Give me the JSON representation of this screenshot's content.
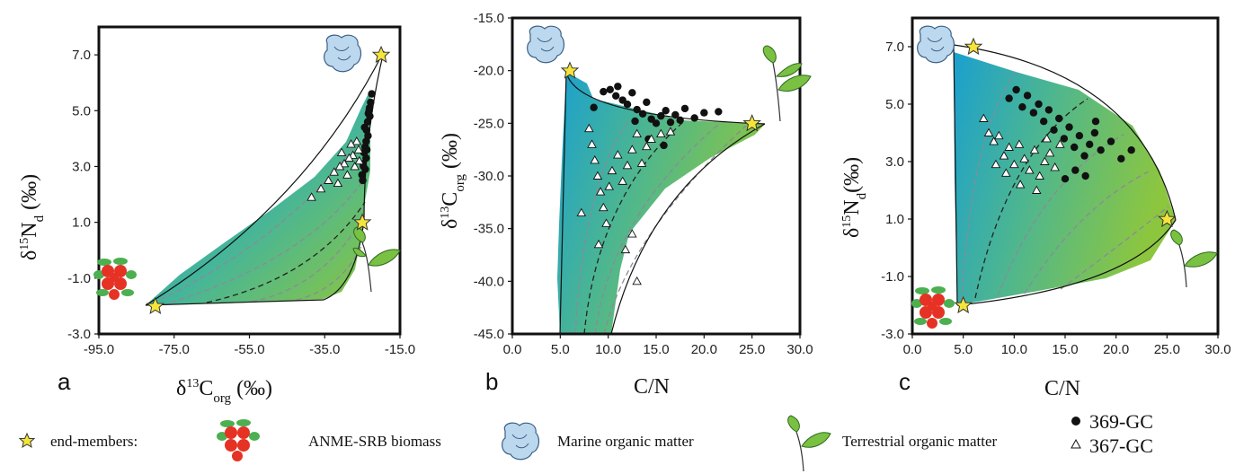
{
  "chart_data": [
    {
      "panel": "a",
      "type": "scatter",
      "xlabel": "δ13Corg (‰)",
      "ylabel": "δ15Nd (‰)",
      "xlim": [
        -95,
        -15
      ],
      "ylim": [
        -3,
        8
      ],
      "xticks": [
        "-95.0",
        "-75.0",
        "-55.0",
        "-35.0",
        "-15.0"
      ],
      "yticks": [
        "-3.0",
        "-1.0",
        "1.0",
        "3.0",
        "5.0",
        "7.0"
      ],
      "end_members": [
        {
          "name": "ANME-SRB biomass",
          "x": -80,
          "y": -2.0
        },
        {
          "name": "Marine organic matter",
          "x": -20,
          "y": 7.0
        },
        {
          "name": "Terrestrial organic matter",
          "x": -25,
          "y": 1.0
        }
      ],
      "series": [
        {
          "name": "369-GC",
          "points": [
            [
              -22.5,
              5.6
            ],
            [
              -22.8,
              5.3
            ],
            [
              -23.2,
              5.0
            ],
            [
              -23.0,
              4.8
            ],
            [
              -23.6,
              4.6
            ],
            [
              -23.9,
              4.3
            ],
            [
              -23.5,
              4.1
            ],
            [
              -24.0,
              3.9
            ],
            [
              -24.3,
              3.7
            ],
            [
              -24.6,
              3.5
            ],
            [
              -24.0,
              3.3
            ],
            [
              -24.8,
              3.1
            ],
            [
              -24.2,
              2.9
            ],
            [
              -25.1,
              2.7
            ],
            [
              -24.9,
              2.5
            ],
            [
              -23.4,
              4.9
            ],
            [
              -24.4,
              4.4
            ],
            [
              -23.1,
              5.1
            ],
            [
              -24.7,
              3.0
            ],
            [
              -23.8,
              3.6
            ]
          ]
        },
        {
          "name": "367-GC",
          "points": [
            [
              -26.0,
              3.6
            ],
            [
              -27.5,
              3.4
            ],
            [
              -28.5,
              3.3
            ],
            [
              -29.8,
              3.1
            ],
            [
              -31.0,
              3.0
            ],
            [
              -32.5,
              2.8
            ],
            [
              -34.0,
              2.5
            ],
            [
              -36.0,
              2.2
            ],
            [
              -38.5,
              1.9
            ],
            [
              -27.0,
              3.0
            ],
            [
              -29.0,
              2.7
            ],
            [
              -30.5,
              3.5
            ],
            [
              -26.5,
              3.9
            ],
            [
              -28.0,
              3.8
            ],
            [
              -31.5,
              2.4
            ],
            [
              -25.8,
              3.2
            ]
          ]
        }
      ]
    },
    {
      "panel": "b",
      "type": "scatter",
      "xlabel": "C/N",
      "ylabel": "δ13Corg (‰)",
      "xlim": [
        0,
        30
      ],
      "ylim": [
        -45,
        -15
      ],
      "xticks": [
        "0.0",
        "5.0",
        "10.0",
        "15.0",
        "20.0",
        "25.0",
        "30.0"
      ],
      "yticks": [
        "-45.0",
        "-40.0",
        "-35.0",
        "-30.0",
        "-25.0",
        "-20.0",
        "-15.0"
      ],
      "end_members": [
        {
          "name": "Marine organic matter",
          "x": 6,
          "y": -20
        },
        {
          "name": "Terrestrial organic matter",
          "x": 25,
          "y": -25
        }
      ],
      "series": [
        {
          "name": "369-GC",
          "points": [
            [
              8.5,
              -23.5
            ],
            [
              9.5,
              -22.0
            ],
            [
              10.2,
              -21.8
            ],
            [
              10.8,
              -22.4
            ],
            [
              11.5,
              -22.8
            ],
            [
              12.0,
              -23.2
            ],
            [
              12.5,
              -22.1
            ],
            [
              13.0,
              -23.7
            ],
            [
              13.6,
              -24.1
            ],
            [
              14.0,
              -23.0
            ],
            [
              14.5,
              -24.6
            ],
            [
              15.0,
              -25.0
            ],
            [
              15.5,
              -24.3
            ],
            [
              16.0,
              -23.8
            ],
            [
              16.5,
              -24.9
            ],
            [
              17.0,
              -24.2
            ],
            [
              17.5,
              -24.7
            ],
            [
              18.0,
              -23.6
            ],
            [
              19.0,
              -24.5
            ],
            [
              20.0,
              -24.0
            ],
            [
              21.5,
              -23.9
            ],
            [
              14.2,
              -26.5
            ],
            [
              15.8,
              -27.1
            ],
            [
              11.0,
              -21.5
            ],
            [
              12.8,
              -24.8
            ]
          ]
        },
        {
          "name": "367-GC",
          "points": [
            [
              8.0,
              -25.5
            ],
            [
              8.3,
              -27.0
            ],
            [
              8.6,
              -28.5
            ],
            [
              8.9,
              -30.0
            ],
            [
              9.2,
              -31.5
            ],
            [
              9.5,
              -33.0
            ],
            [
              9.8,
              -34.5
            ],
            [
              10.1,
              -31.0
            ],
            [
              10.4,
              -29.5
            ],
            [
              11.0,
              -28.0
            ],
            [
              11.5,
              -30.5
            ],
            [
              12.0,
              -29.0
            ],
            [
              12.5,
              -27.5
            ],
            [
              13.0,
              -26.0
            ],
            [
              13.5,
              -28.8
            ],
            [
              14.0,
              -27.2
            ],
            [
              14.5,
              -26.5
            ],
            [
              15.5,
              -26.0
            ],
            [
              16.5,
              -25.8
            ],
            [
              9.0,
              -36.5
            ],
            [
              11.8,
              -37.0
            ],
            [
              12.5,
              -35.5
            ],
            [
              13.0,
              -40.0
            ],
            [
              7.2,
              -33.5
            ]
          ]
        }
      ]
    },
    {
      "panel": "c",
      "type": "scatter",
      "xlabel": "C/N",
      "ylabel": "δ15Nd (‰)",
      "xlim": [
        0,
        30
      ],
      "ylim": [
        -3,
        8
      ],
      "xticks": [
        "0.0",
        "5.0",
        "10.0",
        "15.0",
        "20.0",
        "25.0",
        "30.0"
      ],
      "yticks": [
        "-3.0",
        "-1.0",
        "1.0",
        "3.0",
        "5.0",
        "7.0"
      ],
      "end_members": [
        {
          "name": "ANME-SRB biomass",
          "x": 5,
          "y": -2.0
        },
        {
          "name": "Marine organic matter",
          "x": 6,
          "y": 7.0
        },
        {
          "name": "Terrestrial organic matter",
          "x": 25,
          "y": 1.0
        }
      ],
      "series": [
        {
          "name": "369-GC",
          "points": [
            [
              9.5,
              5.2
            ],
            [
              10.2,
              5.5
            ],
            [
              10.8,
              4.9
            ],
            [
              11.3,
              5.3
            ],
            [
              11.9,
              4.7
            ],
            [
              12.4,
              5.0
            ],
            [
              12.9,
              4.4
            ],
            [
              13.4,
              4.8
            ],
            [
              13.9,
              4.1
            ],
            [
              14.4,
              4.5
            ],
            [
              14.9,
              3.8
            ],
            [
              15.4,
              4.2
            ],
            [
              15.9,
              3.5
            ],
            [
              16.4,
              3.9
            ],
            [
              16.9,
              3.2
            ],
            [
              17.4,
              3.6
            ],
            [
              17.9,
              4.0
            ],
            [
              18.5,
              3.4
            ],
            [
              19.5,
              3.7
            ],
            [
              20.5,
              3.1
            ],
            [
              21.5,
              3.4
            ],
            [
              16.0,
              2.7
            ],
            [
              17.0,
              2.5
            ],
            [
              15.0,
              2.4
            ],
            [
              18.0,
              4.4
            ]
          ]
        },
        {
          "name": "367-GC",
          "points": [
            [
              7.0,
              4.5
            ],
            [
              7.5,
              4.0
            ],
            [
              8.0,
              3.7
            ],
            [
              8.5,
              3.9
            ],
            [
              9.0,
              3.2
            ],
            [
              9.5,
              3.5
            ],
            [
              10.0,
              2.9
            ],
            [
              10.5,
              3.6
            ],
            [
              11.0,
              3.1
            ],
            [
              11.5,
              2.7
            ],
            [
              12.0,
              3.4
            ],
            [
              12.5,
              2.5
            ],
            [
              13.0,
              3.0
            ],
            [
              13.5,
              3.3
            ],
            [
              14.0,
              2.8
            ],
            [
              14.5,
              3.6
            ],
            [
              8.2,
              2.9
            ],
            [
              9.2,
              2.6
            ],
            [
              10.6,
              2.2
            ],
            [
              12.2,
              2.0
            ],
            [
              13.2,
              3.8
            ]
          ]
        }
      ]
    }
  ],
  "legend": {
    "end_members_label": "end-members:",
    "anme_label": "ANME-SRB biomass",
    "marine_label": "Marine organic matter",
    "terrestrial_label": "Terrestrial organic matter",
    "series_369_label": "369-GC",
    "series_367_label": "367-GC"
  },
  "colors": {
    "marine": "#1aa0cf",
    "terrestrial": "#8cc63f",
    "star": "#f5e53a",
    "anme_red": "#e53224",
    "anme_green": "#4caf50",
    "ice": "#bcd8ee",
    "leaf": "#7ac143"
  },
  "icons": {
    "star": "star-icon",
    "anme": "anme-cluster-icon",
    "marine": "marine-blob-icon",
    "terrestrial": "leaf-icon"
  }
}
